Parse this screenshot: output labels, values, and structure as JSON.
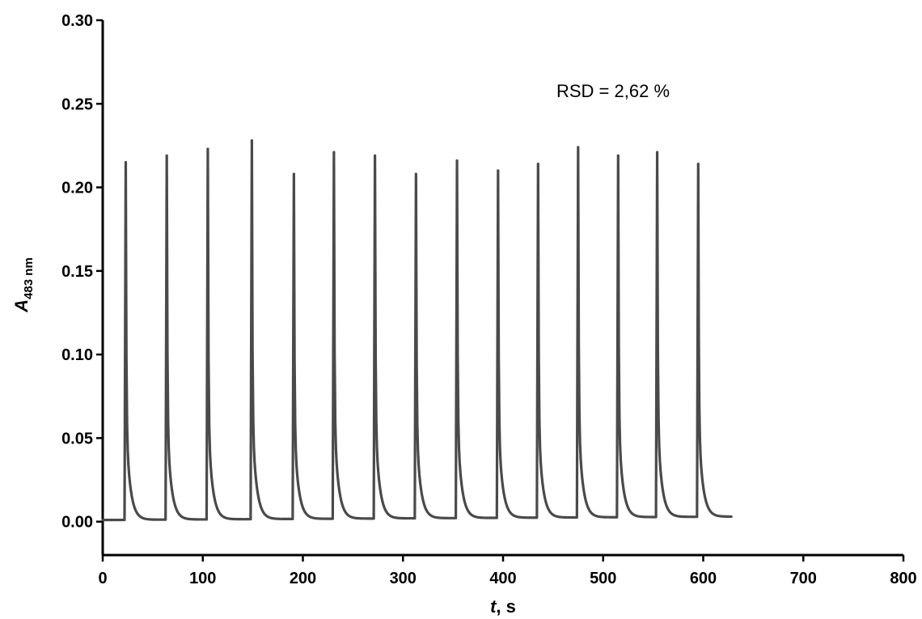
{
  "chart_data": {
    "type": "line",
    "title": "",
    "xlabel": {
      "italic": "t",
      "rest": ", s"
    },
    "ylabel": {
      "main": "A",
      "sub": "483 nm"
    },
    "xlim": [
      0,
      800
    ],
    "ylim": [
      -0.02,
      0.3
    ],
    "x_ticks": [
      0,
      100,
      200,
      300,
      400,
      500,
      600,
      700,
      800
    ],
    "x_tick_labels": [
      "0",
      "100",
      "200",
      "300",
      "400",
      "500",
      "600",
      "700",
      "800"
    ],
    "y_ticks": [
      0.0,
      0.05,
      0.1,
      0.15,
      0.2,
      0.25,
      0.3
    ],
    "y_tick_labels": [
      "0.00",
      "0.05",
      "0.10",
      "0.15",
      "0.20",
      "0.25",
      "0.30"
    ],
    "grid": false,
    "legend": "none",
    "series_color": "#4a4a4a",
    "annotation": "RSD = 2,62 %",
    "baseline": {
      "start_x": 0,
      "end_x": 628,
      "start_y": 0.001,
      "end_y": 0.003
    },
    "peaks": [
      {
        "x": 23,
        "y": 0.215
      },
      {
        "x": 64,
        "y": 0.219
      },
      {
        "x": 105,
        "y": 0.223
      },
      {
        "x": 149,
        "y": 0.228
      },
      {
        "x": 191,
        "y": 0.208
      },
      {
        "x": 231,
        "y": 0.221
      },
      {
        "x": 272,
        "y": 0.219
      },
      {
        "x": 313,
        "y": 0.208
      },
      {
        "x": 354,
        "y": 0.216
      },
      {
        "x": 395,
        "y": 0.21
      },
      {
        "x": 435,
        "y": 0.214
      },
      {
        "x": 475,
        "y": 0.224
      },
      {
        "x": 515,
        "y": 0.219
      },
      {
        "x": 554,
        "y": 0.221
      },
      {
        "x": 595,
        "y": 0.214
      }
    ]
  }
}
